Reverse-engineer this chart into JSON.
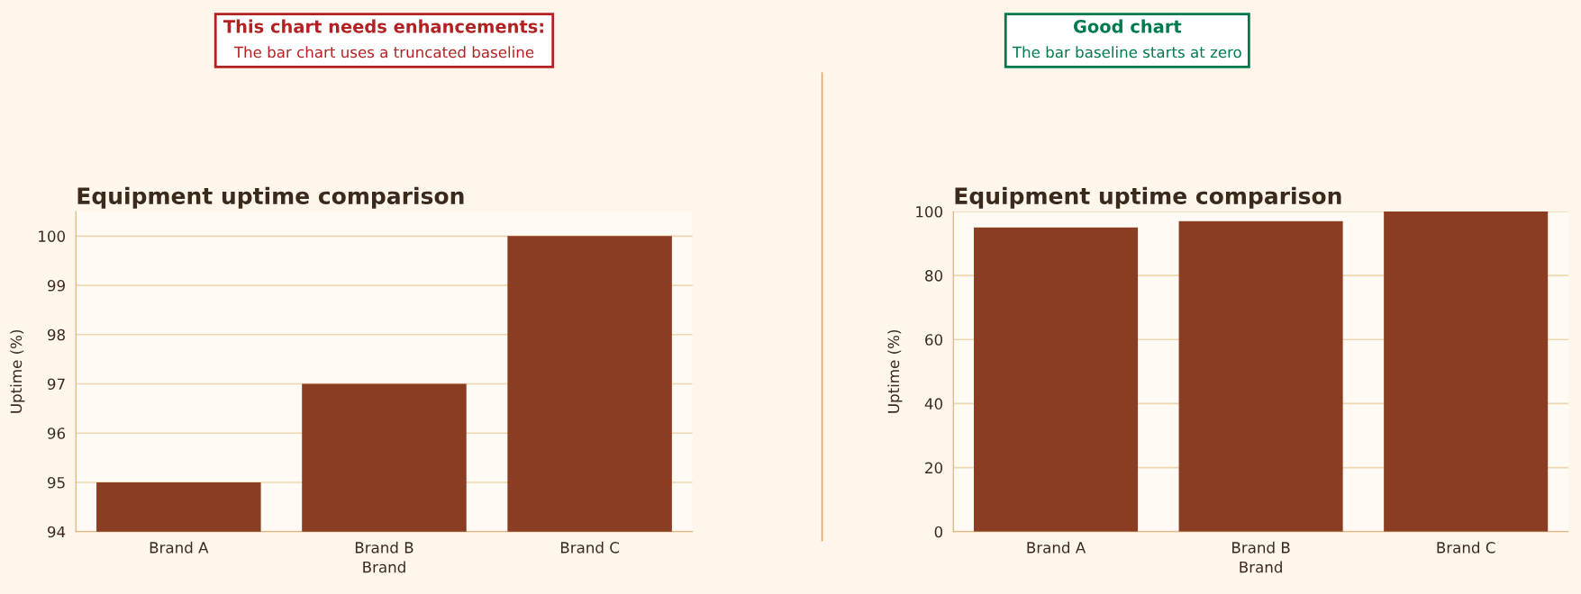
{
  "chart_data": [
    {
      "type": "bar",
      "title": "Equipment uptime comparison",
      "xlabel": "Brand",
      "ylabel": "Uptime (%)",
      "categories": [
        "Brand A",
        "Brand B",
        "Brand C"
      ],
      "values": [
        95,
        97,
        100
      ],
      "color": "#8b3d23",
      "ylim": [
        94,
        100.5
      ],
      "yticks": [
        94,
        95,
        96,
        97,
        98,
        99,
        100
      ],
      "grid": "y",
      "legend": false,
      "annotations": [
        "This chart needs enhancements:",
        "The bar chart uses a truncated baseline"
      ]
    },
    {
      "type": "bar",
      "title": "Equipment uptime comparison",
      "xlabel": "Brand",
      "ylabel": "Uptime (%)",
      "categories": [
        "Brand A",
        "Brand B",
        "Brand C"
      ],
      "values": [
        95,
        97,
        100
      ],
      "color": "#8b3d23",
      "ylim": [
        0,
        100
      ],
      "yticks": [
        0,
        20,
        40,
        60,
        80,
        100
      ],
      "grid": "y",
      "legend": false,
      "annotations": [
        "Good chart",
        "The bar baseline starts at zero"
      ]
    }
  ]
}
